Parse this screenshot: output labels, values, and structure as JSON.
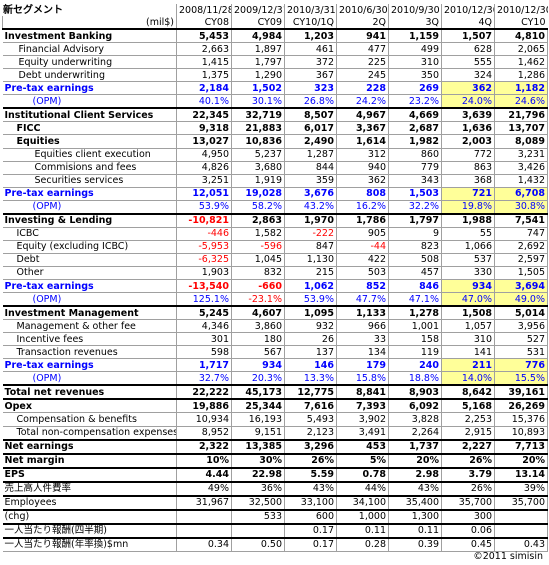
{
  "title": "新セグメント",
  "unit": "(mil$)",
  "dates": [
    "2008/11/28",
    "2009/12/31",
    "2010/3/31",
    "2010/6/30",
    "2010/9/30",
    "2010/12/30",
    "2010/12/30"
  ],
  "periods": [
    "CY08",
    "CY09",
    "CY10/1Q",
    "2Q",
    "3Q",
    "4Q",
    "CY10"
  ],
  "rows": [
    {
      "label": "Investment Banking",
      "v": [
        "5,453",
        "4,984",
        "1,203",
        "941",
        "1,159",
        "1,507",
        "4,810"
      ],
      "cls": "b top"
    },
    {
      "label": "Financial Advisory",
      "v": [
        "2,663",
        "1,897",
        "461",
        "477",
        "499",
        "628",
        "2,065"
      ],
      "cls": "sub"
    },
    {
      "label": "Equity underwriting",
      "v": [
        "1,415",
        "1,797",
        "372",
        "225",
        "310",
        "555",
        "1,462"
      ],
      "cls": "sub"
    },
    {
      "label": "Debt underwriting",
      "v": [
        "1,375",
        "1,290",
        "367",
        "245",
        "350",
        "324",
        "1,286"
      ],
      "cls": "sub"
    },
    {
      "label": "Pre-tax earnings",
      "v": [
        "2,184",
        "1,502",
        "323",
        "228",
        "269",
        "362",
        "1,182"
      ],
      "cls": "b pt"
    },
    {
      "label": "(OPM)",
      "v": [
        "40.1%",
        "30.1%",
        "26.8%",
        "24.2%",
        "23.2%",
        "24.0%",
        "24.6%"
      ],
      "cls": "opm"
    },
    {
      "label": "Institutional Client Services",
      "v": [
        "22,345",
        "32,719",
        "8,507",
        "4,967",
        "4,669",
        "3,639",
        "21,796"
      ],
      "cls": "b top"
    },
    {
      "label": "FICC",
      "v": [
        "9,318",
        "21,883",
        "6,017",
        "3,367",
        "2,687",
        "1,636",
        "13,707"
      ],
      "cls": "b ind"
    },
    {
      "label": "Equities",
      "v": [
        "13,027",
        "10,836",
        "2,490",
        "1,614",
        "1,982",
        "2,003",
        "8,089"
      ],
      "cls": "b ind"
    },
    {
      "label": "Equities client execution",
      "v": [
        "4,950",
        "5,237",
        "1,287",
        "312",
        "860",
        "772",
        "3,231"
      ],
      "cls": "sub2"
    },
    {
      "label": "Commisions and fees",
      "v": [
        "4,826",
        "3,680",
        "844",
        "940",
        "779",
        "863",
        "3,426"
      ],
      "cls": "sub2"
    },
    {
      "label": "Securities services",
      "v": [
        "3,251",
        "1,919",
        "359",
        "362",
        "343",
        "368",
        "1,432"
      ],
      "cls": "sub2"
    },
    {
      "label": "Pre-tax earnings",
      "v": [
        "12,051",
        "19,028",
        "3,676",
        "808",
        "1,503",
        "721",
        "6,708"
      ],
      "cls": "b pt"
    },
    {
      "label": "(OPM)",
      "v": [
        "53.9%",
        "58.2%",
        "43.2%",
        "16.2%",
        "32.2%",
        "19.8%",
        "30.8%"
      ],
      "cls": "opm"
    },
    {
      "label": "Investing & Lending",
      "v": [
        "-10,821",
        "2,863",
        "1,970",
        "1,786",
        "1,797",
        "1,988",
        "7,541"
      ],
      "cls": "b top"
    },
    {
      "label": "ICBC",
      "v": [
        "-446",
        "1,582",
        "-222",
        "905",
        "9",
        "55",
        "747"
      ],
      "cls": "ind"
    },
    {
      "label": "Equity (excluding ICBC)",
      "v": [
        "-5,953",
        "-596",
        "847",
        "-44",
        "823",
        "1,066",
        "2,692"
      ],
      "cls": "ind"
    },
    {
      "label": "Debt",
      "v": [
        "-6,325",
        "1,045",
        "1,130",
        "422",
        "508",
        "537",
        "2,597"
      ],
      "cls": "ind"
    },
    {
      "label": "Other",
      "v": [
        "1,903",
        "832",
        "215",
        "503",
        "457",
        "330",
        "1,505"
      ],
      "cls": "ind"
    },
    {
      "label": "Pre-tax earnings",
      "v": [
        "-13,540",
        "-660",
        "1,062",
        "852",
        "846",
        "934",
        "3,694"
      ],
      "cls": "b pt"
    },
    {
      "label": "(OPM)",
      "v": [
        "125.1%",
        "-23.1%",
        "53.9%",
        "47.7%",
        "47.1%",
        "47.0%",
        "49.0%"
      ],
      "cls": "opm"
    },
    {
      "label": "Investment Management",
      "v": [
        "5,245",
        "4,607",
        "1,095",
        "1,133",
        "1,278",
        "1,508",
        "5,014"
      ],
      "cls": "b top"
    },
    {
      "label": "Management & other fee",
      "v": [
        "4,346",
        "3,860",
        "932",
        "966",
        "1,001",
        "1,057",
        "3,956"
      ],
      "cls": "ind"
    },
    {
      "label": "Incentive fees",
      "v": [
        "301",
        "180",
        "26",
        "33",
        "158",
        "310",
        "527"
      ],
      "cls": "ind"
    },
    {
      "label": "Transaction revenues",
      "v": [
        "598",
        "567",
        "137",
        "134",
        "119",
        "141",
        "531"
      ],
      "cls": "ind"
    },
    {
      "label": "Pre-tax earnings",
      "v": [
        "1,717",
        "934",
        "146",
        "179",
        "240",
        "211",
        "776"
      ],
      "cls": "b pt"
    },
    {
      "label": "(OPM)",
      "v": [
        "32.7%",
        "20.3%",
        "13.3%",
        "15.8%",
        "18.8%",
        "14.0%",
        "15.5%"
      ],
      "cls": "opm"
    },
    {
      "label": "Total net revenues",
      "v": [
        "22,222",
        "45,173",
        "12,775",
        "8,841",
        "8,903",
        "8,642",
        "39,161"
      ],
      "cls": "b top"
    },
    {
      "label": "Opex",
      "v": [
        "19,886",
        "25,344",
        "7,616",
        "7,393",
        "6,092",
        "5,168",
        "26,269"
      ],
      "cls": "b top"
    },
    {
      "label": "Compensation & benefits",
      "v": [
        "10,934",
        "16,193",
        "5,493",
        "3,902",
        "3,828",
        "2,253",
        "15,376"
      ],
      "cls": "ind"
    },
    {
      "label": "Total non-compensation expenses",
      "v": [
        "8,952",
        "9,151",
        "2,123",
        "3,491",
        "2,264",
        "2,915",
        "10,893"
      ],
      "cls": "ind"
    },
    {
      "label": "Net earnings",
      "v": [
        "2,322",
        "13,385",
        "3,296",
        "453",
        "1,737",
        "2,227",
        "7,713"
      ],
      "cls": "b top"
    },
    {
      "label": "Net margin",
      "v": [
        "10%",
        "30%",
        "26%",
        "5%",
        "20%",
        "26%",
        "20%"
      ],
      "cls": "b top"
    },
    {
      "label": "EPS",
      "v": [
        "4.44",
        "22.98",
        "5.59",
        "0.78",
        "2.98",
        "3.79",
        "13.14"
      ],
      "cls": "b top"
    },
    {
      "label": "売上高人件費率",
      "v": [
        "49%",
        "36%",
        "43%",
        "44%",
        "43%",
        "26%",
        "39%"
      ],
      "cls": "top"
    },
    {
      "label": "Employees",
      "v": [
        "31,967",
        "32,500",
        "33,100",
        "34,100",
        "35,400",
        "35,700",
        "35,700"
      ],
      "cls": "top"
    },
    {
      "label": "(chg)",
      "v": [
        "",
        "533",
        "600",
        "1,000",
        "1,300",
        "300",
        ""
      ],
      "cls": "top"
    },
    {
      "label": "一人当たり報酬(四半期)",
      "v": [
        "",
        "",
        "0.17",
        "0.11",
        "0.11",
        "0.06",
        ""
      ],
      "cls": "top"
    },
    {
      "label": "一人当たり報酬(年率換)$mn",
      "v": [
        "0.34",
        "0.50",
        "0.17",
        "0.28",
        "0.39",
        "0.45",
        "0.43"
      ],
      "cls": "top"
    }
  ],
  "negatives": [
    [
      14,
      0
    ],
    [
      15,
      0
    ],
    [
      15,
      2
    ],
    [
      16,
      0
    ],
    [
      16,
      1
    ],
    [
      16,
      3
    ],
    [
      17,
      0
    ],
    [
      19,
      0
    ],
    [
      19,
      1
    ],
    [
      20,
      1
    ]
  ],
  "highlights": [
    [
      4,
      5
    ],
    [
      4,
      6
    ],
    [
      5,
      5
    ],
    [
      5,
      6
    ],
    [
      12,
      5
    ],
    [
      12,
      6
    ],
    [
      13,
      5
    ],
    [
      13,
      6
    ],
    [
      19,
      5
    ],
    [
      19,
      6
    ],
    [
      20,
      5
    ],
    [
      20,
      6
    ],
    [
      25,
      5
    ],
    [
      25,
      6
    ],
    [
      26,
      5
    ],
    [
      26,
      6
    ]
  ],
  "footer": "©2011 simisin"
}
